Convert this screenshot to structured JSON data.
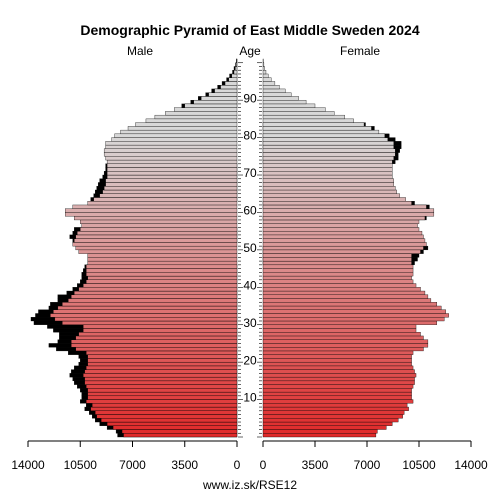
{
  "chart_data": {
    "type": "population-pyramid",
    "title": "Demographic Pyramid of East Middle Sweden 2024",
    "left_label": "Male",
    "center_label": "Age",
    "right_label": "Female",
    "source": "www.iz.sk/RSE12",
    "xlim": [
      0,
      14000
    ],
    "xticks_left": [
      "14000",
      "10500",
      "7000",
      "3500",
      "0"
    ],
    "xticks_right": [
      "0",
      "3500",
      "7000",
      "10500",
      "14000"
    ],
    "xtick_values_left": [
      14000,
      10500,
      7000,
      3500,
      0
    ],
    "xtick_values_right": [
      0,
      3500,
      7000,
      10500,
      14000
    ],
    "age_ticks": [
      10,
      20,
      30,
      40,
      50,
      60,
      70,
      80,
      90
    ],
    "ages_max": 100,
    "colors": {
      "bar_bottom": "#e02a2a",
      "bar_top": "#d8d8d8",
      "excess": "#000000",
      "outline": "#000000"
    },
    "series": [
      {
        "name": "Male",
        "values": [
          8000,
          8100,
          8700,
          9200,
          9500,
          9700,
          9900,
          10200,
          10100,
          10500,
          10400,
          10400,
          10500,
          10700,
          10900,
          11000,
          11200,
          11100,
          10900,
          10600,
          10500,
          10600,
          11300,
          12100,
          12600,
          12000,
          11900,
          11900,
          12300,
          12700,
          13600,
          13800,
          13500,
          13300,
          12600,
          12500,
          12000,
          12000,
          11400,
          11000,
          10700,
          10500,
          10400,
          10400,
          10300,
          10200,
          10000,
          10000,
          10000,
          10600,
          10800,
          11000,
          11000,
          11200,
          11000,
          10900,
          10400,
          10500,
          10900,
          11500,
          11500,
          11000,
          10000,
          9800,
          9600,
          9500,
          9400,
          9300,
          9200,
          9000,
          8900,
          8800,
          8800,
          8700,
          8800,
          8900,
          8900,
          8800,
          8800,
          8400,
          8200,
          7800,
          7300,
          6800,
          6100,
          5500,
          4800,
          4200,
          3700,
          3100,
          2600,
          2100,
          1700,
          1300,
          1000,
          700,
          500,
          300,
          200,
          100,
          50
        ]
      },
      {
        "name": "Female",
        "values": [
          7600,
          7700,
          8300,
          8700,
          9100,
          9400,
          9500,
          9800,
          9700,
          10100,
          10000,
          10000,
          10000,
          10100,
          10200,
          10200,
          10300,
          10200,
          10100,
          10000,
          10000,
          10000,
          10100,
          10800,
          11100,
          11100,
          10800,
          10600,
          10300,
          10300,
          11700,
          12200,
          12500,
          12300,
          12000,
          11700,
          11300,
          11100,
          10900,
          10600,
          10300,
          10100,
          10000,
          10100,
          10100,
          10100,
          10200,
          10400,
          10500,
          10800,
          11100,
          11000,
          10900,
          10800,
          10700,
          10500,
          10400,
          10500,
          11000,
          11500,
          11500,
          11200,
          10200,
          9600,
          9200,
          9000,
          8900,
          8800,
          8800,
          8700,
          8700,
          8700,
          8700,
          8900,
          9100,
          9100,
          9200,
          9300,
          9300,
          8900,
          8500,
          7800,
          7500,
          6900,
          6100,
          5500,
          4800,
          4200,
          3500,
          2900,
          2400,
          1900,
          1500,
          1100,
          800,
          550,
          350,
          200,
          110,
          60,
          30
        ]
      }
    ]
  }
}
